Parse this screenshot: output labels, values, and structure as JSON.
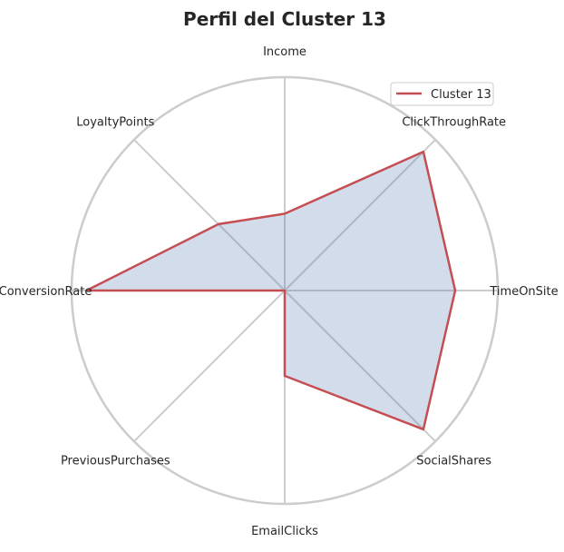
{
  "chart_data": {
    "type": "radar",
    "title": "Perfil del Cluster 13",
    "axes": [
      "TimeOnSite",
      "ClickThroughRate",
      "Income",
      "LoyaltyPoints",
      "ConversionRate",
      "PreviousPurchases",
      "EmailClicks",
      "SocialShares"
    ],
    "series": [
      {
        "name": "Cluster 13",
        "values": [
          0.8,
          0.92,
          0.36,
          0.44,
          0.93,
          0.0,
          0.4,
          0.92
        ],
        "color": "#c44e52",
        "fill": "#4c72b0"
      }
    ],
    "range": [
      0,
      1
    ],
    "grid": true,
    "legend": "top-right"
  }
}
